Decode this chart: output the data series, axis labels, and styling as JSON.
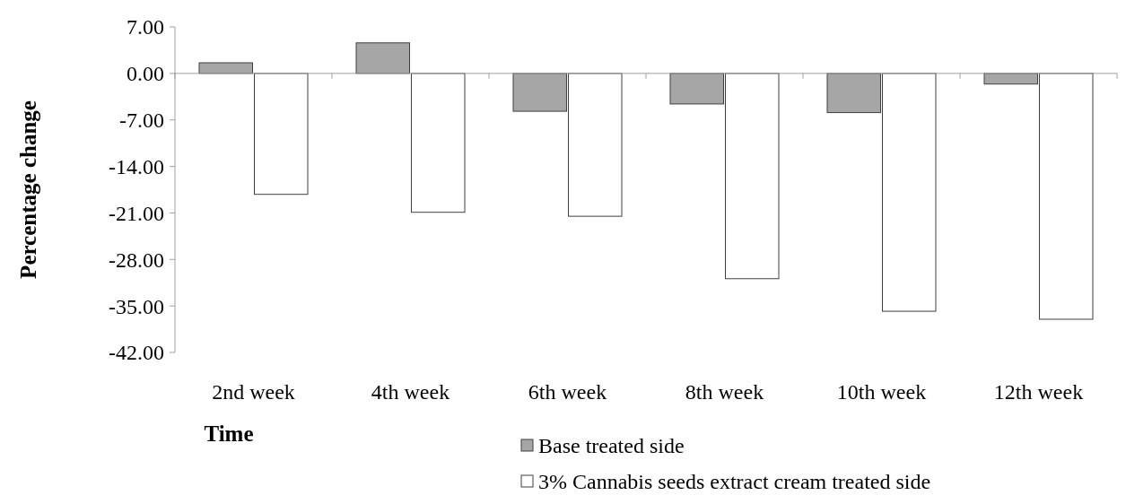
{
  "chart_data": {
    "type": "bar",
    "xlabel": "Time",
    "ylabel": "Percentage change",
    "categories": [
      "2nd week",
      "4th week",
      "6th week",
      "8th week",
      "10th week",
      "12th week"
    ],
    "series": [
      {
        "name": "Base treated side",
        "color": "#a6a6a6",
        "values": [
          1.6,
          4.6,
          -5.7,
          -4.6,
          -5.9,
          -1.6
        ]
      },
      {
        "name": "3% Cannabis seeds extract cream treated side",
        "color": "#ffffff",
        "values": [
          -18.2,
          -20.9,
          -21.5,
          -30.9,
          -35.8,
          -37.0
        ]
      }
    ],
    "ylim": [
      -42,
      7
    ],
    "yticks": [
      {
        "value": 7,
        "label": "7.00"
      },
      {
        "value": 0,
        "label": "0.00"
      },
      {
        "value": -7,
        "label": "-7.00"
      },
      {
        "value": -14,
        "label": "-14.00"
      },
      {
        "value": -21,
        "label": "-21.00"
      },
      {
        "value": -28,
        "label": "-28.00"
      },
      {
        "value": -35,
        "label": "-35.00"
      },
      {
        "value": -42,
        "label": "-42.00"
      }
    ],
    "legend": "bottom"
  }
}
